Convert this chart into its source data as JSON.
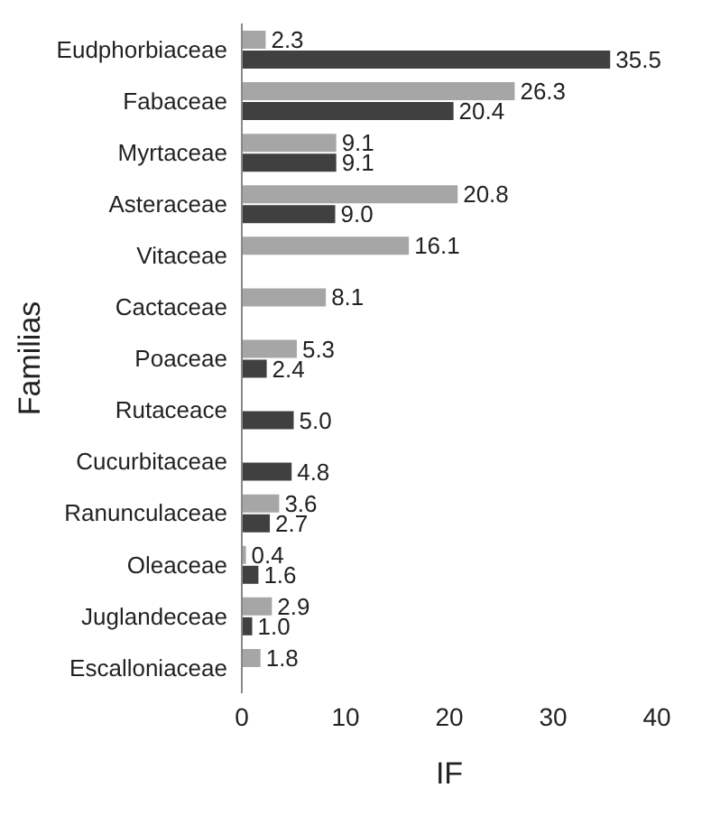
{
  "chart_data": {
    "type": "bar",
    "orientation": "horizontal",
    "xlabel": "IF",
    "ylabel": "Familias",
    "categories": [
      "Eudphorbiaceae",
      "Fabaceae",
      "Myrtaceae",
      "Asteraceae",
      "Vitaceae",
      "Cactaceae",
      "Poaceae",
      "Rutaceace",
      "Cucurbitaceae",
      "Ranunculaceae",
      "Oleaceae",
      "Juglandeceae",
      "Escalloniaceae"
    ],
    "series": [
      {
        "color": "#a6a6a6",
        "values": [
          2.3,
          26.3,
          9.1,
          20.8,
          16.1,
          8.1,
          5.3,
          null,
          null,
          3.6,
          0.4,
          2.9,
          1.8
        ],
        "value_labels": [
          "2.3",
          "26.3",
          "9.1",
          "20.8",
          "16.1",
          "8.1",
          "5.3",
          null,
          null,
          "3.6",
          "0.4",
          "2.9",
          "1.8"
        ]
      },
      {
        "color": "#404040",
        "values": [
          35.5,
          20.4,
          9.1,
          9.0,
          null,
          null,
          2.4,
          5.0,
          4.8,
          2.7,
          1.6,
          1.0,
          null
        ],
        "value_labels": [
          "35.5",
          "20.4",
          "9.1",
          "9.0",
          null,
          null,
          "2.4",
          "5.0",
          "4.8",
          "2.7",
          "1.6",
          "1.0",
          null
        ]
      }
    ],
    "xlim": [
      0,
      40
    ],
    "xticks": [
      0,
      10,
      20,
      30,
      40
    ]
  }
}
